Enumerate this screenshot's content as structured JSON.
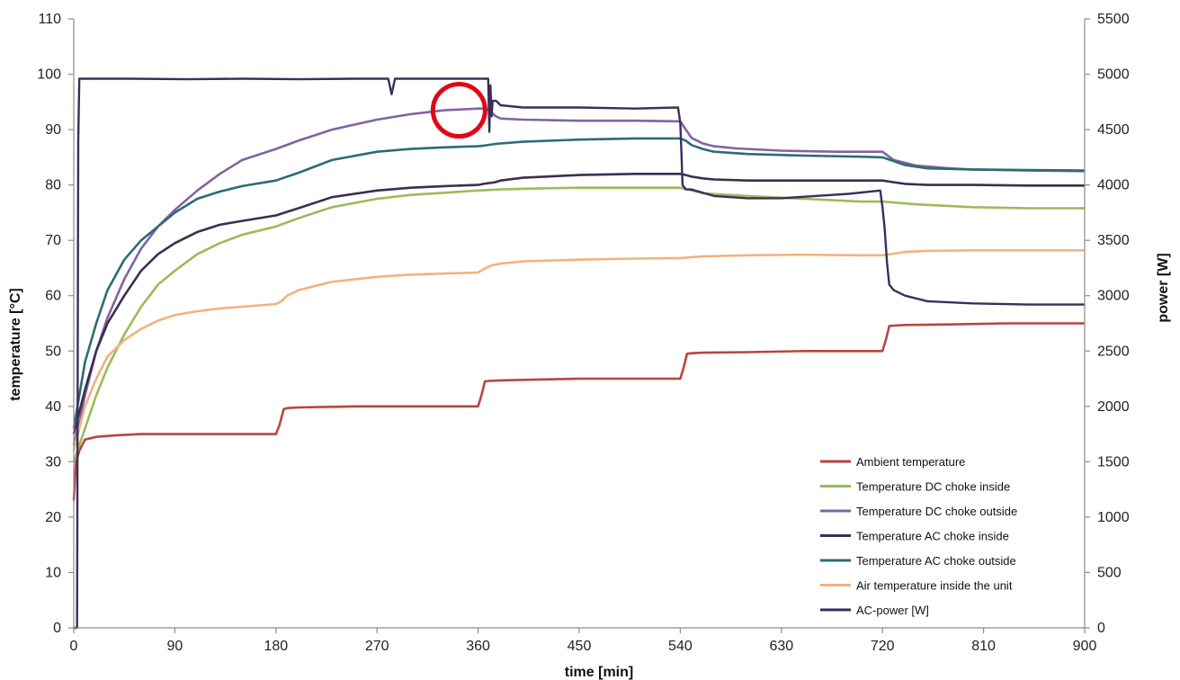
{
  "chart_data": {
    "type": "line",
    "xlabel": "time [min]",
    "ylabel": "temperature [°C]",
    "y2label": "power [W]",
    "xlim": [
      0,
      900
    ],
    "ylim": [
      0,
      110
    ],
    "y2lim": [
      0,
      5500
    ],
    "x_ticks": [
      0,
      90,
      180,
      270,
      360,
      450,
      540,
      630,
      720,
      810,
      900
    ],
    "y_ticks": [
      0,
      10,
      20,
      30,
      40,
      50,
      60,
      70,
      80,
      90,
      100,
      110
    ],
    "y2_ticks": [
      0,
      500,
      1000,
      1500,
      2000,
      2500,
      3000,
      3500,
      4000,
      4500,
      5000,
      5500
    ],
    "grid": false,
    "legend_position": "bottom-right",
    "annotation": {
      "type": "circle",
      "x": 343,
      "y": 93.5,
      "color": "#e30613"
    },
    "series": [
      {
        "name": "Ambient temperature",
        "axis": "left",
        "color": "#b8463f",
        "x": [
          0,
          2,
          5,
          10,
          20,
          40,
          60,
          100,
          150,
          180,
          183,
          187,
          190,
          200,
          250,
          300,
          360,
          363,
          366,
          370,
          380,
          400,
          450,
          500,
          540,
          543,
          546,
          550,
          560,
          600,
          650,
          700,
          720,
          723,
          726,
          730,
          740,
          780,
          830,
          900
        ],
        "y": [
          23,
          30,
          32,
          34,
          34.5,
          34.8,
          35,
          35,
          35,
          35,
          36.5,
          39.5,
          39.7,
          39.8,
          40,
          40,
          40,
          42,
          44.5,
          44.6,
          44.7,
          44.8,
          45,
          45,
          45,
          47,
          49.5,
          49.6,
          49.7,
          49.8,
          50,
          50,
          50,
          52,
          54.5,
          54.6,
          54.7,
          54.8,
          55,
          55
        ]
      },
      {
        "name": "Temperature DC choke inside",
        "axis": "left",
        "color": "#9bbb59",
        "x": [
          0,
          5,
          10,
          20,
          30,
          45,
          60,
          75,
          90,
          110,
          130,
          150,
          180,
          200,
          230,
          270,
          300,
          330,
          360,
          380,
          420,
          450,
          500,
          540,
          560,
          600,
          650,
          700,
          720,
          750,
          800,
          850,
          900
        ],
        "y": [
          30,
          33,
          36,
          42,
          47,
          53,
          58,
          62,
          64.5,
          67.5,
          69.5,
          71,
          72.5,
          74,
          76,
          77.5,
          78.2,
          78.6,
          79,
          79.2,
          79.4,
          79.5,
          79.5,
          79.5,
          78.5,
          78,
          77.5,
          77,
          77,
          76.5,
          76,
          75.8,
          75.8
        ]
      },
      {
        "name": "Temperature DC choke outside",
        "axis": "left",
        "color": "#8064a2",
        "x": [
          0,
          5,
          10,
          20,
          30,
          45,
          60,
          75,
          90,
          110,
          130,
          150,
          180,
          200,
          230,
          270,
          300,
          330,
          360,
          365,
          370,
          375,
          380,
          400,
          450,
          500,
          540,
          545,
          550,
          560,
          570,
          590,
          630,
          680,
          720,
          730,
          750,
          780,
          800,
          850,
          900
        ],
        "y": [
          33,
          37,
          42,
          50,
          56,
          63,
          68.5,
          72.5,
          75.5,
          79,
          82,
          84.5,
          86.5,
          88,
          90,
          91.8,
          92.8,
          93.5,
          93.8,
          93.8,
          93.5,
          92.5,
          92,
          91.8,
          91.6,
          91.6,
          91.5,
          90,
          88.5,
          87.5,
          87,
          86.6,
          86.2,
          86,
          86,
          84.5,
          83.5,
          83,
          82.8,
          82.6,
          82.5
        ]
      },
      {
        "name": "Temperature AC choke inside",
        "axis": "left",
        "color": "#3b2e4f",
        "x": [
          0,
          5,
          10,
          20,
          30,
          45,
          60,
          75,
          90,
          110,
          130,
          150,
          180,
          200,
          230,
          270,
          300,
          330,
          360,
          365,
          375,
          380,
          400,
          450,
          500,
          540,
          545,
          550,
          560,
          570,
          600,
          650,
          700,
          720,
          730,
          740,
          760,
          800,
          850,
          900
        ],
        "y": [
          35,
          39,
          43,
          50,
          55,
          60,
          64.5,
          67.5,
          69.5,
          71.5,
          72.8,
          73.5,
          74.5,
          75.8,
          77.8,
          79,
          79.5,
          79.8,
          80,
          80.2,
          80.5,
          80.8,
          81.3,
          81.8,
          82,
          82,
          81.8,
          81.5,
          81.2,
          81,
          80.8,
          80.8,
          80.8,
          80.8,
          80.5,
          80.2,
          80,
          80,
          79.9,
          79.9
        ]
      },
      {
        "name": "Temperature AC choke outside",
        "axis": "left",
        "color": "#2e6b73",
        "x": [
          0,
          5,
          10,
          20,
          30,
          45,
          60,
          75,
          90,
          110,
          130,
          150,
          180,
          200,
          230,
          270,
          300,
          330,
          360,
          365,
          375,
          380,
          400,
          450,
          500,
          540,
          545,
          550,
          560,
          570,
          600,
          650,
          700,
          720,
          730,
          740,
          760,
          800,
          850,
          900
        ],
        "y": [
          36,
          42,
          48,
          55,
          61,
          66.5,
          70,
          72.5,
          75,
          77.5,
          78.8,
          79.8,
          80.8,
          82.2,
          84.5,
          86,
          86.5,
          86.8,
          87,
          87.1,
          87.4,
          87.5,
          87.8,
          88.2,
          88.4,
          88.4,
          88,
          87.2,
          86.5,
          86,
          85.6,
          85.3,
          85.1,
          85,
          84.3,
          83.6,
          83,
          82.8,
          82.7,
          82.6
        ]
      },
      {
        "name": "Air temperature inside the unit",
        "axis": "left",
        "color": "#f2b27f",
        "x": [
          0,
          5,
          10,
          20,
          30,
          45,
          60,
          75,
          90,
          110,
          130,
          150,
          180,
          185,
          190,
          200,
          230,
          270,
          300,
          330,
          360,
          365,
          372,
          380,
          400,
          450,
          500,
          540,
          560,
          600,
          650,
          700,
          720,
          730,
          740,
          760,
          800,
          850,
          900
        ],
        "y": [
          32,
          36,
          40,
          45,
          49,
          52,
          54,
          55.5,
          56.5,
          57.2,
          57.7,
          58,
          58.5,
          59,
          60,
          61,
          62.5,
          63.4,
          63.8,
          64,
          64.2,
          64.8,
          65.5,
          65.8,
          66.2,
          66.5,
          66.7,
          66.8,
          67.1,
          67.3,
          67.4,
          67.3,
          67.3,
          67.6,
          67.9,
          68.1,
          68.2,
          68.2,
          68.2
        ]
      },
      {
        "name": "AC-power [W]",
        "axis": "right",
        "color": "#3b2e5c",
        "x": [
          0,
          3,
          4,
          5,
          8,
          50,
          100,
          150,
          200,
          250,
          280,
          283,
          286,
          300,
          350,
          369,
          370,
          371,
          372,
          373,
          376,
          380,
          400,
          450,
          500,
          538,
          540,
          541,
          542,
          545,
          550,
          570,
          600,
          630,
          660,
          690,
          718,
          720,
          722,
          724,
          726,
          730,
          740,
          760,
          800,
          850,
          900
        ],
        "y": [
          0,
          0,
          4400,
          4960,
          4960,
          4960,
          4955,
          4960,
          4955,
          4960,
          4960,
          4820,
          4960,
          4960,
          4960,
          4960,
          4480,
          4900,
          4620,
          4760,
          4760,
          4720,
          4700,
          4700,
          4690,
          4700,
          4560,
          4300,
          4000,
          3960,
          3960,
          3900,
          3880,
          3880,
          3900,
          3920,
          3950,
          3800,
          3600,
          3300,
          3100,
          3050,
          3000,
          2950,
          2930,
          2920,
          2920
        ]
      }
    ]
  }
}
